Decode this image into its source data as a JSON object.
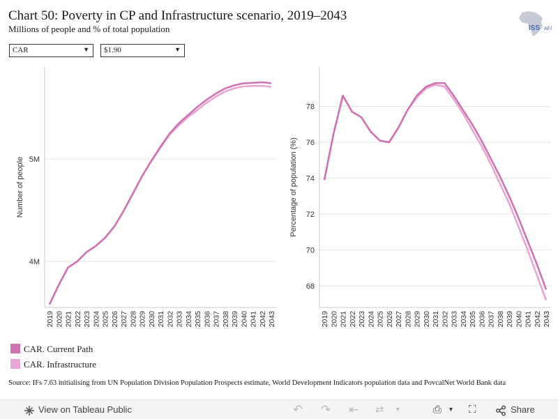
{
  "title": "Chart 50: Poverty in CP and Infrastructure scenario, 2019–2043",
  "subtitle": "Millions of people and % of total population",
  "logo_text": "ISS",
  "logo_text_2": "AFI",
  "filters": {
    "country": "CAR",
    "poverty_line": "$1.90"
  },
  "colors": {
    "current_path": "#cf73b3",
    "infrastructure": "#e8a6d4"
  },
  "chart_data": [
    {
      "type": "line",
      "ylabel": "Number of people",
      "x": [
        "2019",
        "2020",
        "2021",
        "2022",
        "2023",
        "2024",
        "2025",
        "2026",
        "2027",
        "2028",
        "2029",
        "2030",
        "2031",
        "2032",
        "2033",
        "2034",
        "2035",
        "2036",
        "2037",
        "2038",
        "2039",
        "2040",
        "2041",
        "2042",
        "2043"
      ],
      "y_ticks": [
        4,
        5
      ],
      "y_tick_labels": [
        "4M",
        "5M"
      ],
      "ylim": [
        3.55,
        5.9
      ],
      "series": [
        {
          "name": "CAR. Current Path",
          "values": [
            3.58,
            3.77,
            3.94,
            4.0,
            4.09,
            4.15,
            4.23,
            4.34,
            4.49,
            4.66,
            4.83,
            4.98,
            5.12,
            5.25,
            5.35,
            5.43,
            5.51,
            5.58,
            5.64,
            5.69,
            5.72,
            5.74,
            5.745,
            5.75,
            5.74
          ]
        },
        {
          "name": "CAR. Infrastructure",
          "values": [
            3.58,
            3.77,
            3.94,
            4.0,
            4.09,
            4.15,
            4.23,
            4.34,
            4.49,
            4.66,
            4.83,
            4.98,
            5.11,
            5.24,
            5.33,
            5.41,
            5.48,
            5.55,
            5.61,
            5.66,
            5.69,
            5.71,
            5.715,
            5.715,
            5.705
          ]
        }
      ]
    },
    {
      "type": "line",
      "ylabel": "Percentage of population (%)",
      "x": [
        "2019",
        "2020",
        "2021",
        "2022",
        "2023",
        "2024",
        "2025",
        "2026",
        "2027",
        "2028",
        "2029",
        "2030",
        "2031",
        "2032",
        "2033",
        "2034",
        "2035",
        "2036",
        "2037",
        "2038",
        "2039",
        "2040",
        "2041",
        "2042",
        "2043"
      ],
      "y_ticks": [
        68,
        70,
        72,
        74,
        76,
        78
      ],
      "y_tick_labels": [
        "68",
        "70",
        "72",
        "74",
        "76",
        "78"
      ],
      "ylim": [
        66.8,
        80.2
      ],
      "series": [
        {
          "name": "CAR. Current Path",
          "values": [
            73.9,
            76.5,
            78.6,
            77.7,
            77.4,
            76.6,
            76.1,
            76.0,
            76.8,
            77.8,
            78.6,
            79.1,
            79.3,
            79.3,
            78.6,
            77.8,
            77.0,
            76.1,
            75.1,
            74.1,
            73.0,
            71.8,
            70.5,
            69.2,
            67.8
          ]
        },
        {
          "name": "CAR. Infrastructure",
          "values": [
            73.9,
            76.5,
            78.6,
            77.7,
            77.4,
            76.6,
            76.1,
            76.0,
            76.8,
            77.8,
            78.5,
            79.0,
            79.2,
            79.1,
            78.4,
            77.6,
            76.7,
            75.8,
            74.8,
            73.7,
            72.6,
            71.3,
            70.0,
            68.6,
            67.2
          ]
        }
      ]
    }
  ],
  "legend": [
    {
      "label": "CAR. Current Path"
    },
    {
      "label": "CAR. Infrastructure"
    }
  ],
  "source": "Source: IFs 7.63 initialising from UN Population Division Population Prospects estimate, World Development Indicators population data and PovcalNet World Bank data",
  "toolbar": {
    "view_label": "View on Tableau Public",
    "share_label": "Share"
  }
}
